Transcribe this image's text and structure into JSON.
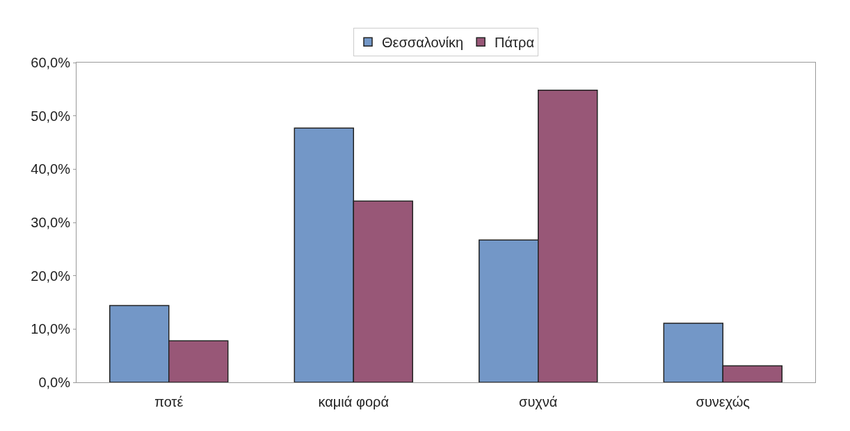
{
  "chart_data": {
    "type": "bar",
    "categories": [
      "ποτέ",
      "καμιά φορά",
      "συχνά",
      "συνεχώς"
    ],
    "series": [
      {
        "name": "Θεσσαλονίκη",
        "color": "#7397c7",
        "values": [
          14.4,
          47.7,
          26.7,
          11.1
        ]
      },
      {
        "name": "Πάτρα",
        "color": "#985777",
        "values": [
          7.8,
          34.0,
          54.8,
          3.1
        ]
      }
    ],
    "ylim": [
      0,
      60
    ],
    "yticks": [
      {
        "value": 0,
        "label": "0,0%"
      },
      {
        "value": 10,
        "label": "10,0%"
      },
      {
        "value": 20,
        "label": "20,0%"
      },
      {
        "value": 30,
        "label": "30,0%"
      },
      {
        "value": 40,
        "label": "40,0%"
      },
      {
        "value": 50,
        "label": "50,0%"
      },
      {
        "value": 60,
        "label": "60,0%"
      }
    ],
    "legend": "top"
  }
}
